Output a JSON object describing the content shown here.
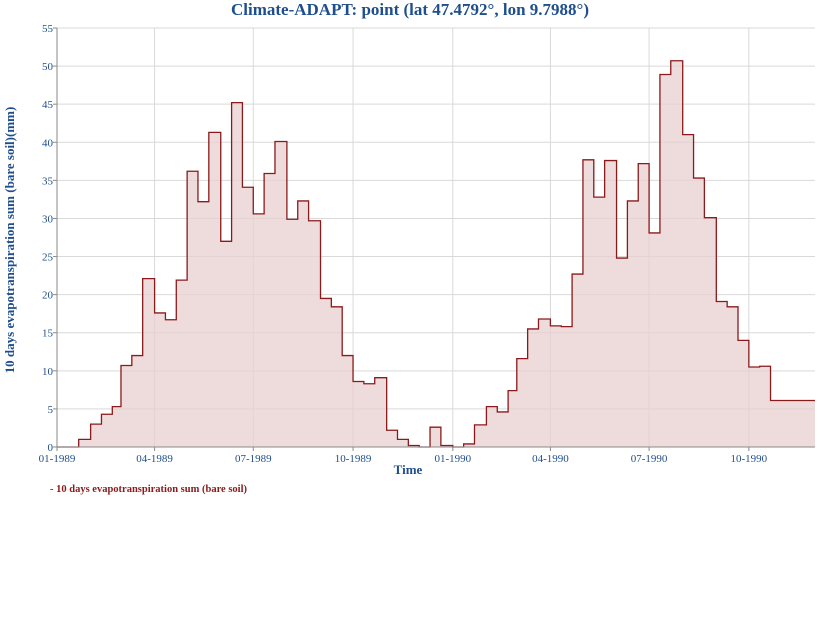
{
  "chart_data": {
    "type": "area",
    "title": "Climate-ADAPT: point (lat 47.4792°, lon 9.7988°)",
    "xlabel": "Time",
    "ylabel": "10 days evapotranspiration sum (bare soil)(mm)",
    "ylim": [
      0,
      55
    ],
    "yticks": [
      0,
      5,
      10,
      15,
      20,
      25,
      30,
      35,
      40,
      45,
      50,
      55
    ],
    "xlim": [
      "1989-01-01",
      "1990-12-01"
    ],
    "xticks": [
      {
        "date": "1989-01-01",
        "label": "01-1989"
      },
      {
        "date": "1989-04-01",
        "label": "04-1989"
      },
      {
        "date": "1989-07-01",
        "label": "07-1989"
      },
      {
        "date": "1989-10-01",
        "label": "10-1989"
      },
      {
        "date": "1990-01-01",
        "label": "01-1990"
      },
      {
        "date": "1990-04-01",
        "label": "04-1990"
      },
      {
        "date": "1990-07-01",
        "label": "07-1990"
      },
      {
        "date": "1990-10-01",
        "label": "10-1990"
      }
    ],
    "grid": true,
    "legend_position": "bottom-left",
    "colors": {
      "line": "#8b1a1a",
      "fill": "#e8cfcf",
      "title": "#1f4e8c",
      "axis_text": "#1f4e8c",
      "grid": "#d9d9d9"
    },
    "series": [
      {
        "name": "10 days evapotranspiration sum (bare soil)",
        "x": [
          "1989-01-01",
          "1989-01-11",
          "1989-01-21",
          "1989-02-01",
          "1989-02-11",
          "1989-02-21",
          "1989-03-01",
          "1989-03-11",
          "1989-03-21",
          "1989-04-01",
          "1989-04-11",
          "1989-04-21",
          "1989-05-01",
          "1989-05-11",
          "1989-05-21",
          "1989-06-01",
          "1989-06-11",
          "1989-06-21",
          "1989-07-01",
          "1989-07-11",
          "1989-07-21",
          "1989-08-01",
          "1989-08-11",
          "1989-08-21",
          "1989-09-01",
          "1989-09-11",
          "1989-09-21",
          "1989-10-01",
          "1989-10-11",
          "1989-10-21",
          "1989-11-01",
          "1989-11-11",
          "1989-11-21",
          "1989-12-01",
          "1989-12-11",
          "1989-12-21",
          "1990-01-01",
          "1990-01-11",
          "1990-01-21",
          "1990-02-01",
          "1990-02-11",
          "1990-02-21",
          "1990-03-01",
          "1990-03-11",
          "1990-03-21",
          "1990-04-01",
          "1990-04-11",
          "1990-04-21",
          "1990-05-01",
          "1990-05-11",
          "1990-05-21",
          "1990-06-01",
          "1990-06-11",
          "1990-06-21",
          "1990-07-01",
          "1990-07-11",
          "1990-07-21",
          "1990-08-01",
          "1990-08-11",
          "1990-08-21",
          "1990-09-01",
          "1990-09-11",
          "1990-09-21",
          "1990-10-01",
          "1990-10-11",
          "1990-10-21",
          "1990-11-01"
        ],
        "values": [
          0.0,
          0.0,
          1.0,
          3.0,
          4.3,
          5.3,
          10.7,
          12.0,
          22.1,
          17.6,
          16.7,
          21.9,
          36.2,
          32.2,
          41.3,
          27.0,
          45.2,
          34.1,
          30.6,
          35.9,
          40.1,
          29.9,
          32.3,
          29.7,
          19.5,
          18.4,
          12.0,
          8.6,
          8.3,
          9.1,
          2.2,
          1.0,
          0.2,
          0.0,
          2.6,
          0.2,
          0.0,
          0.4,
          2.9,
          5.3,
          4.6,
          7.4,
          11.6,
          15.5,
          16.8,
          15.9,
          15.8,
          22.7,
          37.7,
          32.8,
          37.6,
          24.8,
          32.3,
          37.2,
          28.1,
          48.9,
          50.7,
          41.0,
          35.3,
          30.1,
          19.1,
          18.4,
          14.0,
          10.5,
          10.6,
          6.1,
          6.1
        ]
      }
    ]
  }
}
